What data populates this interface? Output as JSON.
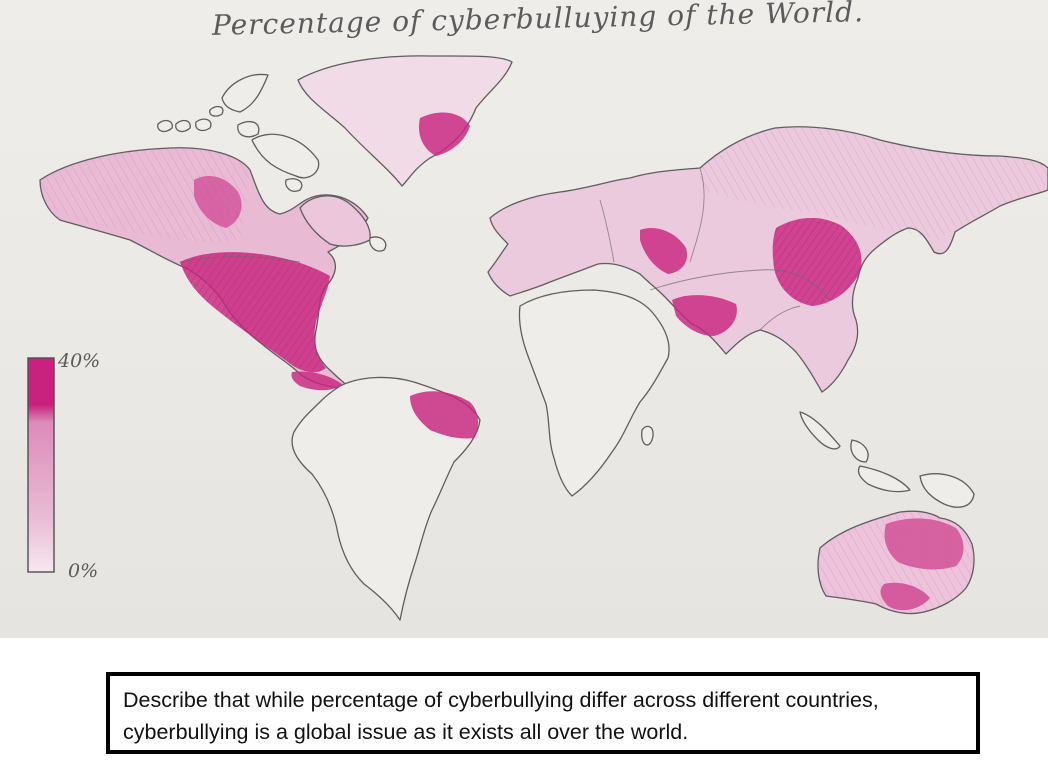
{
  "map": {
    "title": "Percentage of cyberbulluying of the World.",
    "legend": {
      "max_label": "40%",
      "min_label": "0%",
      "color_high": "#c9227e",
      "color_low": "#f3dbe8"
    },
    "colors": {
      "paper": "#ecebe7",
      "outline": "#585858",
      "shade_light": "#e7b9d3",
      "shade_mid": "#d98ab8",
      "shade_dark": "#c9257f"
    }
  },
  "caption": {
    "text": "Describe that while percentage of cyberbullying differ across different countries, cyberbullying is a global issue as it exists all over the world."
  }
}
